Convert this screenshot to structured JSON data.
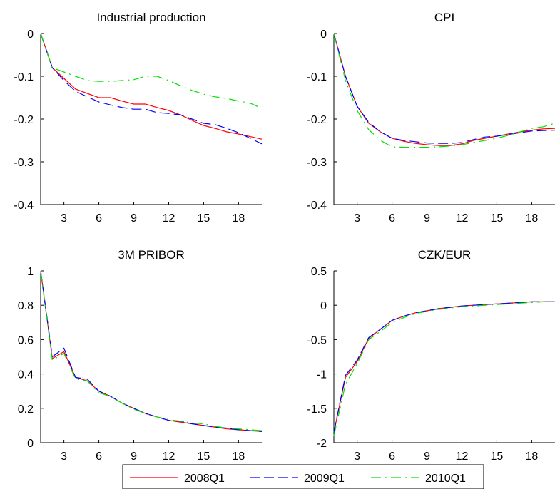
{
  "chart_data": [
    {
      "type": "line",
      "title": "Industrial production",
      "xlim": [
        1,
        20
      ],
      "xticks": [
        3,
        6,
        9,
        12,
        15,
        18
      ],
      "ylim": [
        -0.4,
        0
      ],
      "yticks": [
        0,
        -0.1,
        -0.2,
        -0.3,
        -0.4
      ],
      "ytick_labels": [
        "0",
        "-0.1",
        "-0.2",
        "-0.3",
        "-0.4"
      ],
      "x": [
        1,
        2,
        3,
        4,
        5,
        6,
        7,
        8,
        9,
        10,
        11,
        12,
        13,
        14,
        15,
        16,
        17,
        18,
        19,
        20
      ],
      "series": [
        {
          "name": "2008Q1",
          "values": [
            0,
            -0.08,
            -0.105,
            -0.13,
            -0.14,
            -0.15,
            -0.15,
            -0.158,
            -0.165,
            -0.165,
            -0.173,
            -0.18,
            -0.19,
            -0.203,
            -0.215,
            -0.222,
            -0.23,
            -0.235,
            -0.241,
            -0.247
          ]
        },
        {
          "name": "2009Q1",
          "values": [
            0,
            -0.08,
            -0.11,
            -0.135,
            -0.148,
            -0.16,
            -0.167,
            -0.173,
            -0.177,
            -0.177,
            -0.185,
            -0.187,
            -0.19,
            -0.2,
            -0.21,
            -0.213,
            -0.222,
            -0.232,
            -0.245,
            -0.258
          ]
        },
        {
          "name": "2010Q1",
          "values": [
            0,
            -0.08,
            -0.09,
            -0.1,
            -0.11,
            -0.112,
            -0.112,
            -0.11,
            -0.108,
            -0.1,
            -0.1,
            -0.11,
            -0.122,
            -0.133,
            -0.142,
            -0.148,
            -0.152,
            -0.158,
            -0.163,
            -0.175
          ]
        }
      ]
    },
    {
      "type": "line",
      "title": "CPI",
      "xlim": [
        1,
        20
      ],
      "xticks": [
        3,
        6,
        9,
        12,
        15,
        18
      ],
      "ylim": [
        -0.4,
        0
      ],
      "yticks": [
        0,
        -0.1,
        -0.2,
        -0.3,
        -0.4
      ],
      "ytick_labels": [
        "0",
        "-0.1",
        "-0.2",
        "-0.3",
        "-0.4"
      ],
      "x": [
        1,
        2,
        3,
        4,
        5,
        6,
        7,
        8,
        9,
        10,
        11,
        12,
        13,
        14,
        15,
        16,
        17,
        18,
        19,
        20
      ],
      "series": [
        {
          "name": "2008Q1",
          "values": [
            0,
            -0.1,
            -0.17,
            -0.21,
            -0.23,
            -0.245,
            -0.252,
            -0.257,
            -0.26,
            -0.262,
            -0.262,
            -0.258,
            -0.25,
            -0.245,
            -0.24,
            -0.235,
            -0.23,
            -0.226,
            -0.223,
            -0.222
          ]
        },
        {
          "name": "2009Q1",
          "values": [
            0,
            -0.1,
            -0.17,
            -0.208,
            -0.23,
            -0.245,
            -0.25,
            -0.253,
            -0.256,
            -0.257,
            -0.257,
            -0.255,
            -0.248,
            -0.242,
            -0.24,
            -0.236,
            -0.232,
            -0.228,
            -0.227,
            -0.226
          ]
        },
        {
          "name": "2010Q1",
          "values": [
            0,
            -0.11,
            -0.18,
            -0.225,
            -0.25,
            -0.265,
            -0.266,
            -0.266,
            -0.266,
            -0.265,
            -0.263,
            -0.26,
            -0.255,
            -0.25,
            -0.245,
            -0.238,
            -0.23,
            -0.222,
            -0.218,
            -0.21
          ]
        }
      ]
    },
    {
      "type": "line",
      "title": "3M PRIBOR",
      "xlim": [
        1,
        20
      ],
      "xticks": [
        3,
        6,
        9,
        12,
        15,
        18
      ],
      "ylim": [
        0,
        1
      ],
      "yticks": [
        1,
        0.8,
        0.6,
        0.4,
        0.2,
        0
      ],
      "ytick_labels": [
        "1",
        "0.8",
        "0.6",
        "0.4",
        "0.2",
        "0"
      ],
      "x": [
        1,
        2,
        3,
        4,
        5,
        6,
        7,
        8,
        9,
        10,
        11,
        12,
        13,
        14,
        15,
        16,
        17,
        18,
        19,
        20
      ],
      "series": [
        {
          "name": "2008Q1",
          "values": [
            1,
            0.49,
            0.53,
            0.38,
            0.36,
            0.3,
            0.27,
            0.23,
            0.2,
            0.17,
            0.15,
            0.13,
            0.12,
            0.11,
            0.1,
            0.09,
            0.08,
            0.075,
            0.07,
            0.065
          ]
        },
        {
          "name": "2009Q1",
          "values": [
            1,
            0.5,
            0.55,
            0.38,
            0.37,
            0.3,
            0.27,
            0.23,
            0.2,
            0.17,
            0.15,
            0.13,
            0.125,
            0.11,
            0.1,
            0.09,
            0.085,
            0.075,
            0.07,
            0.065
          ]
        },
        {
          "name": "2010Q1",
          "values": [
            1,
            0.48,
            0.52,
            0.37,
            0.36,
            0.29,
            0.27,
            0.23,
            0.195,
            0.17,
            0.15,
            0.135,
            0.125,
            0.115,
            0.11,
            0.095,
            0.085,
            0.08,
            0.075,
            0.07
          ]
        }
      ]
    },
    {
      "type": "line",
      "title": "CZK/EUR",
      "xlim": [
        1,
        20
      ],
      "xticks": [
        3,
        6,
        9,
        12,
        15,
        18
      ],
      "ylim": [
        -2,
        0.5
      ],
      "yticks": [
        0.5,
        0,
        -0.5,
        -1,
        -1.5,
        -2
      ],
      "ytick_labels": [
        "0.5",
        "0",
        "-0.5",
        "-1",
        "-1.5",
        "-2"
      ],
      "x": [
        1,
        2,
        3,
        4,
        5,
        6,
        7,
        8,
        9,
        10,
        11,
        12,
        13,
        14,
        15,
        16,
        17,
        18,
        19,
        20
      ],
      "series": [
        {
          "name": "2008Q1",
          "values": [
            -1.85,
            -1.05,
            -0.82,
            -0.48,
            -0.35,
            -0.22,
            -0.16,
            -0.11,
            -0.08,
            -0.05,
            -0.03,
            -0.01,
            0,
            0.01,
            0.02,
            0.03,
            0.04,
            0.05,
            0.05,
            0.05
          ]
        },
        {
          "name": "2009Q1",
          "values": [
            -1.85,
            -1.02,
            -0.8,
            -0.47,
            -0.35,
            -0.22,
            -0.16,
            -0.11,
            -0.08,
            -0.05,
            -0.03,
            -0.01,
            0,
            0.01,
            0.02,
            0.03,
            0.04,
            0.05,
            0.05,
            0.05
          ]
        },
        {
          "name": "2010Q1",
          "values": [
            -1.9,
            -1.15,
            -0.85,
            -0.5,
            -0.38,
            -0.25,
            -0.18,
            -0.12,
            -0.09,
            -0.06,
            -0.04,
            -0.02,
            -0.01,
            0,
            0.01,
            0.02,
            0.03,
            0.04,
            0.05,
            0.05
          ]
        }
      ]
    }
  ],
  "legend": {
    "position": "bottom-center",
    "entries": [
      {
        "name": "2008Q1",
        "color": "#ff0000",
        "style": "solid"
      },
      {
        "name": "2009Q1",
        "color": "#0000ff",
        "style": "dashed"
      },
      {
        "name": "2010Q1",
        "color": "#00e000",
        "style": "dashdot"
      }
    ]
  },
  "series_styles": {
    "2008Q1": {
      "color": "#ff0000",
      "dash": "solid"
    },
    "2009Q1": {
      "color": "#0000ff",
      "dash": "dashed"
    },
    "2010Q1": {
      "color": "#00e000",
      "dash": "dashdot"
    }
  }
}
